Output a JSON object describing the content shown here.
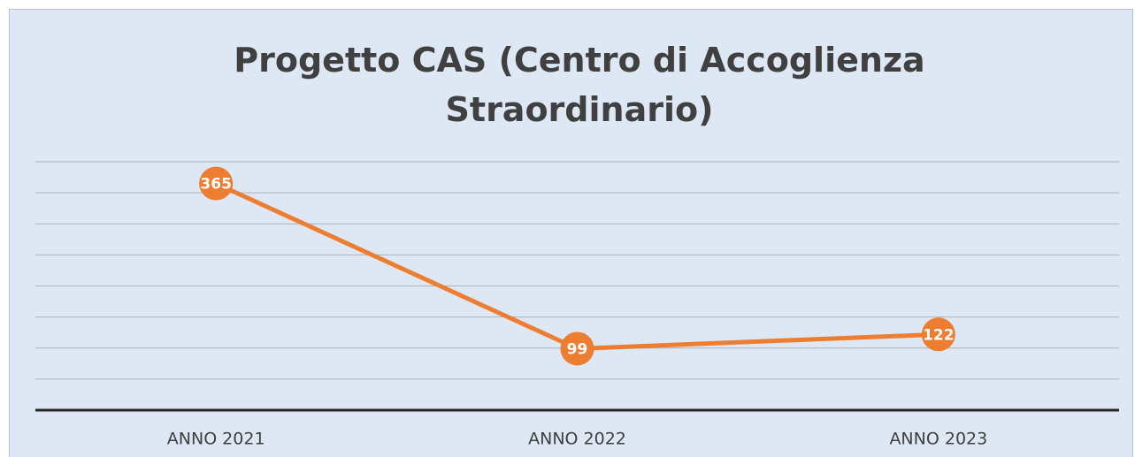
{
  "chart_data": {
    "type": "line",
    "title": "Progetto CAS (Centro di Accoglienza Straordinario)",
    "categories": [
      "ANNO 2021",
      "ANNO 2022",
      "ANNO 2023"
    ],
    "series": [
      {
        "name": "Progetto CAS",
        "color": "#ed7d31",
        "values": [
          365,
          99,
          122
        ]
      }
    ],
    "ylim": [
      0,
      400
    ],
    "yticks": [
      0,
      50,
      100,
      150,
      200,
      250,
      300,
      350,
      400
    ],
    "grid": true,
    "show_ytick_labels": false,
    "legend": false,
    "data_labels": true
  }
}
